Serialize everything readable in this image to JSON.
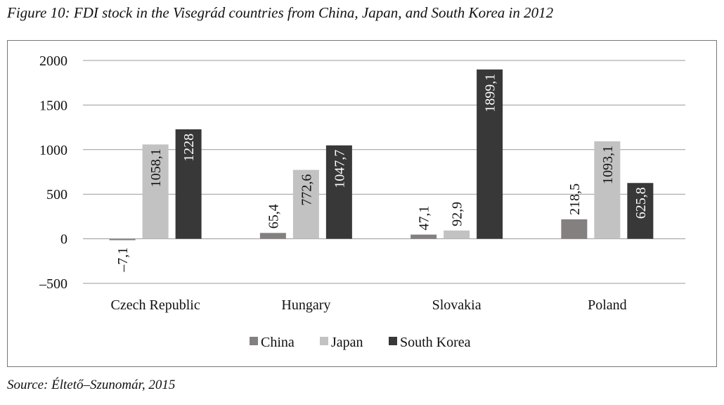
{
  "chart_data": {
    "type": "bar",
    "title": "Figure 10: FDI stock in the Visegrád countries from China, Japan, and South Korea in 2012",
    "source": "Source: Éltető–Szunomár, 2015",
    "categories": [
      "Czech Republic",
      "Hungary",
      "Slovakia",
      "Poland"
    ],
    "series": [
      {
        "name": "China",
        "color": "#858080",
        "values": [
          -7.1,
          65.4,
          47.1,
          218.5
        ],
        "labels": [
          "–7,1",
          "65,4",
          "47,1",
          "218,5"
        ]
      },
      {
        "name": "Japan",
        "color": "#c2c2c2",
        "values": [
          1058.1,
          772.6,
          92.9,
          1093.1
        ],
        "labels": [
          "1058,1",
          "772,6",
          "92,9",
          "1093,1"
        ]
      },
      {
        "name": "South Korea",
        "color": "#383838",
        "values": [
          1228,
          1047.7,
          1899.1,
          625.8
        ],
        "labels": [
          "1228",
          "1047,7",
          "1899,1",
          "625,8"
        ]
      }
    ],
    "ylim": [
      -500,
      2000
    ],
    "yticks": [
      -500,
      0,
      500,
      1000,
      1500,
      2000
    ],
    "ytick_labels": [
      "–500",
      "0",
      "500",
      "1000",
      "1500",
      "2000"
    ],
    "grid": true,
    "legend": "bottom"
  }
}
